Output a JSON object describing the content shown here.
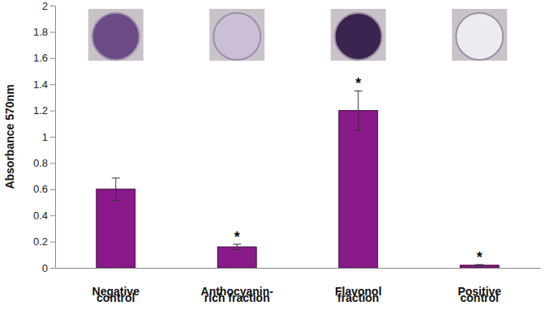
{
  "chart_data": {
    "type": "bar",
    "y_label": "Absorbance 570nm",
    "categories": [
      "Negative control",
      "Anthocyanin-rich fraction",
      "Flavonol fraction",
      "Positive control"
    ],
    "values": [
      0.6,
      0.16,
      1.2,
      0.02
    ],
    "errors": [
      0.085,
      0.02,
      0.15,
      0.005
    ],
    "color": "#8a1a8a",
    "ylim": [
      0,
      2
    ],
    "yticks": [
      0,
      0.2,
      0.4,
      0.6,
      0.8,
      1,
      1.2,
      1.4,
      1.6,
      1.8,
      2
    ],
    "grid": false,
    "annotations": [
      {
        "text": "*",
        "category": "Anthocyanin-rich fraction"
      },
      {
        "text": "*",
        "category": "Flavonol fraction"
      },
      {
        "text": "*",
        "category": "Positive control"
      }
    ]
  }
}
